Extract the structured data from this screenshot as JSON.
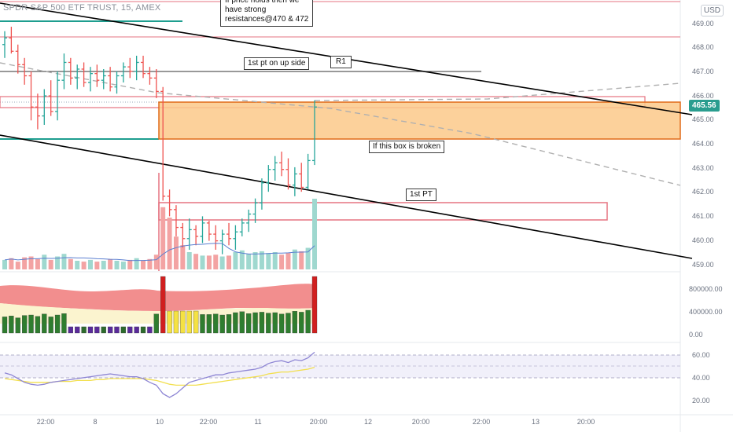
{
  "symbol_title": "SPDR S&P 500 ETF TRUST, 15, AMEX",
  "currency_button": "USD",
  "last_price": "465.56",
  "annotations": {
    "resistance_note": "If price holds then we\nhave strong\nresistances@470 & 472",
    "up_side_note": "1st pt on up side",
    "r1_label": "R1",
    "box_note": "If this box is broken",
    "first_pt_label": "1st PT"
  },
  "price_axis": [
    "469.00",
    "468.00",
    "467.00",
    "466.00",
    "465.00",
    "464.00",
    "463.00",
    "462.00",
    "461.00",
    "460.00",
    "459.00"
  ],
  "volume_axis": [
    "800000.00",
    "400000.00",
    "0.00"
  ],
  "oscillator_axis": [
    "60.00",
    "40.00",
    "20.00"
  ],
  "time_axis": [
    "22:00",
    "8",
    "10",
    "22:00",
    "11",
    "20:00",
    "12",
    "20:00",
    "22:00",
    "13",
    "20:00"
  ],
  "colors": {
    "bull": "#26a69a",
    "bear": "#ef5350",
    "box_fill": "#fcc98a",
    "box_stroke": "#e06b1a",
    "trendline": "#000000",
    "zone_stroke": "#e57380",
    "osc_line": "#8e86d4",
    "osc_signal": "#f2df4e"
  },
  "chart_data": {
    "type": "candlestick",
    "price_ylim": [
      458.6,
      469.8
    ],
    "candles": [
      {
        "o": 468.4,
        "h": 469.0,
        "l": 467.8,
        "c": 468.7
      },
      {
        "o": 468.7,
        "h": 469.2,
        "l": 468.0,
        "c": 468.1
      },
      {
        "o": 468.1,
        "h": 468.4,
        "l": 467.1,
        "c": 467.5
      },
      {
        "o": 467.5,
        "h": 467.8,
        "l": 466.6,
        "c": 467.0
      },
      {
        "o": 467.0,
        "h": 467.2,
        "l": 465.0,
        "c": 465.6
      },
      {
        "o": 465.6,
        "h": 466.2,
        "l": 464.6,
        "c": 465.2
      },
      {
        "o": 465.2,
        "h": 466.4,
        "l": 464.8,
        "c": 466.1
      },
      {
        "o": 466.1,
        "h": 466.8,
        "l": 465.2,
        "c": 465.4
      },
      {
        "o": 465.4,
        "h": 467.2,
        "l": 465.0,
        "c": 466.8
      },
      {
        "o": 466.8,
        "h": 468.0,
        "l": 466.4,
        "c": 467.6
      },
      {
        "o": 467.6,
        "h": 467.8,
        "l": 466.6,
        "c": 466.9
      },
      {
        "o": 466.9,
        "h": 467.5,
        "l": 466.4,
        "c": 467.3
      },
      {
        "o": 467.3,
        "h": 467.6,
        "l": 466.5,
        "c": 466.7
      },
      {
        "o": 466.7,
        "h": 467.4,
        "l": 466.3,
        "c": 467.1
      },
      {
        "o": 467.1,
        "h": 467.5,
        "l": 466.5,
        "c": 466.8
      },
      {
        "o": 466.8,
        "h": 467.3,
        "l": 466.4,
        "c": 467.0
      },
      {
        "o": 467.0,
        "h": 467.4,
        "l": 466.3,
        "c": 466.5
      },
      {
        "o": 466.5,
        "h": 467.2,
        "l": 466.2,
        "c": 467.0
      },
      {
        "o": 467.0,
        "h": 467.6,
        "l": 466.7,
        "c": 467.4
      },
      {
        "o": 467.4,
        "h": 467.8,
        "l": 466.9,
        "c": 467.2
      },
      {
        "o": 467.2,
        "h": 467.9,
        "l": 466.8,
        "c": 467.6
      },
      {
        "o": 467.6,
        "h": 467.9,
        "l": 466.9,
        "c": 467.1
      },
      {
        "o": 467.1,
        "h": 467.4,
        "l": 466.6,
        "c": 466.9
      },
      {
        "o": 466.9,
        "h": 467.3,
        "l": 466.0,
        "c": 466.3
      },
      {
        "o": 466.3,
        "h": 466.5,
        "l": 461.4,
        "c": 461.6
      },
      {
        "o": 461.6,
        "h": 461.9,
        "l": 460.7,
        "c": 461.0
      },
      {
        "o": 461.0,
        "h": 461.2,
        "l": 459.8,
        "c": 460.2
      },
      {
        "o": 460.2,
        "h": 460.4,
        "l": 459.3,
        "c": 459.7
      },
      {
        "o": 459.7,
        "h": 460.6,
        "l": 459.2,
        "c": 460.1
      },
      {
        "o": 460.1,
        "h": 460.3,
        "l": 459.4,
        "c": 459.8
      },
      {
        "o": 459.8,
        "h": 460.7,
        "l": 459.5,
        "c": 460.4
      },
      {
        "o": 460.4,
        "h": 460.5,
        "l": 459.6,
        "c": 459.9
      },
      {
        "o": 459.9,
        "h": 460.3,
        "l": 459.2,
        "c": 459.6
      },
      {
        "o": 459.6,
        "h": 460.1,
        "l": 459.0,
        "c": 459.9
      },
      {
        "o": 459.9,
        "h": 460.4,
        "l": 459.4,
        "c": 459.7
      },
      {
        "o": 459.7,
        "h": 460.3,
        "l": 459.2,
        "c": 460.0
      },
      {
        "o": 460.0,
        "h": 460.6,
        "l": 459.8,
        "c": 460.4
      },
      {
        "o": 460.4,
        "h": 461.0,
        "l": 460.0,
        "c": 460.8
      },
      {
        "o": 460.8,
        "h": 461.5,
        "l": 460.4,
        "c": 461.3
      },
      {
        "o": 461.3,
        "h": 462.4,
        "l": 461.0,
        "c": 462.2
      },
      {
        "o": 462.2,
        "h": 463.0,
        "l": 461.8,
        "c": 462.8
      },
      {
        "o": 462.8,
        "h": 463.4,
        "l": 462.3,
        "c": 463.1
      },
      {
        "o": 463.1,
        "h": 463.6,
        "l": 462.5,
        "c": 462.8
      },
      {
        "o": 462.8,
        "h": 463.3,
        "l": 461.9,
        "c": 462.1
      },
      {
        "o": 462.1,
        "h": 462.9,
        "l": 461.6,
        "c": 462.6
      },
      {
        "o": 462.6,
        "h": 463.1,
        "l": 461.8,
        "c": 462.0
      },
      {
        "o": 462.0,
        "h": 463.5,
        "l": 461.9,
        "c": 463.2
      },
      {
        "o": 463.2,
        "h": 465.9,
        "l": 463.0,
        "c": 465.6
      }
    ],
    "volume_ylim": [
      0,
      1000000
    ],
    "volume": [
      110000,
      130000,
      90000,
      140000,
      150000,
      120000,
      170000,
      110000,
      150000,
      180000,
      120000,
      100000,
      90000,
      110000,
      90000,
      100000,
      120000,
      100000,
      90000,
      110000,
      130000,
      100000,
      120000,
      170000,
      720000,
      600000,
      380000,
      280000,
      200000,
      180000,
      160000,
      160000,
      170000,
      150000,
      160000,
      200000,
      220000,
      180000,
      200000,
      210000,
      190000,
      200000,
      170000,
      190000,
      230000,
      210000,
      250000,
      900000
    ],
    "oscillator_ylim": [
      10,
      70
    ],
    "oscillator": [
      46,
      44,
      40,
      36,
      34,
      33,
      34,
      36,
      37,
      38,
      39,
      40,
      41,
      42,
      43,
      44,
      45,
      44,
      43,
      42,
      42,
      40,
      36,
      33,
      24,
      20,
      24,
      30,
      36,
      38,
      40,
      42,
      44,
      44,
      46,
      47,
      48,
      49,
      50,
      52,
      56,
      58,
      59,
      57,
      60,
      59,
      62,
      68
    ],
    "oscillator_signal": [
      40,
      39,
      38,
      37,
      36,
      36,
      36,
      36,
      37,
      37,
      37,
      38,
      38,
      38,
      39,
      39,
      40,
      40,
      40,
      40,
      40,
      40,
      39,
      38,
      36,
      34,
      33,
      33,
      33,
      33,
      34,
      35,
      36,
      37,
      38,
      39,
      40,
      41,
      42,
      43,
      45,
      46,
      47,
      47,
      48,
      49,
      50,
      52
    ]
  }
}
